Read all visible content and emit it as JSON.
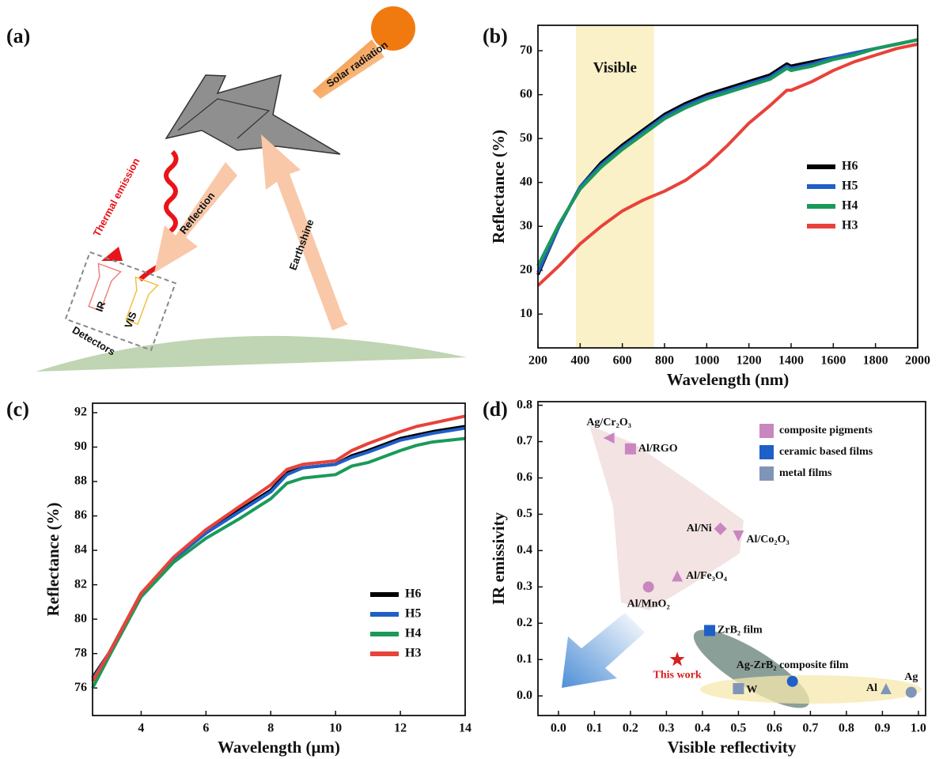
{
  "diagram": {
    "panel": "(a)",
    "labels": {
      "solar": "Solar radiation",
      "thermal": "Thermal emission",
      "reflection": "Reflection",
      "earthshine": "Earthshine",
      "ir": "IR",
      "vis": "VIS",
      "detectors": "Detectors"
    }
  },
  "chart_data": [
    {
      "type": "line",
      "panel": "(b)",
      "x_label": "Wavelength (nm)",
      "y_label": "Reflectance (%)",
      "x": [
        200,
        300,
        400,
        500,
        600,
        700,
        800,
        900,
        1000,
        1100,
        1200,
        1300,
        1380,
        1400,
        1500,
        1600,
        1700,
        1800,
        1900,
        2000
      ],
      "series": [
        {
          "name": "H6",
          "color": "#000000",
          "values": [
            19,
            30,
            39,
            44.5,
            48.5,
            52,
            55.5,
            58,
            60,
            61.5,
            63,
            64.5,
            67,
            66.5,
            67.5,
            68.5,
            69.5,
            70.5,
            71.5,
            72.5
          ]
        },
        {
          "name": "H5",
          "color": "#1f5fc8",
          "values": [
            19.5,
            30,
            39,
            44,
            48,
            51.5,
            55,
            57.5,
            59.5,
            61,
            62.5,
            64,
            66.5,
            66,
            67,
            68.5,
            69.5,
            70.5,
            71.5,
            72.5
          ]
        },
        {
          "name": "H4",
          "color": "#1a9a5a",
          "values": [
            21,
            30.5,
            38.5,
            43.5,
            47.5,
            51,
            54.5,
            57,
            59,
            60.5,
            62,
            63.5,
            66,
            65.5,
            66.5,
            68,
            69,
            70.5,
            71.5,
            72.5
          ]
        },
        {
          "name": "H3",
          "color": "#e8423a",
          "values": [
            16.5,
            21,
            26,
            30,
            33.5,
            36,
            38,
            40.5,
            44,
            48.5,
            53.5,
            57.5,
            61,
            61,
            63,
            65.5,
            67.5,
            69,
            70.5,
            71.5
          ]
        }
      ],
      "band": {
        "label": "Visible",
        "range": [
          380,
          750
        ],
        "color": "#fbf1c9"
      },
      "xlim": [
        200,
        2000
      ],
      "xticks": [
        200,
        400,
        600,
        800,
        1000,
        1200,
        1400,
        1600,
        1800,
        2000
      ],
      "ylim": [
        2.3,
        75.8
      ],
      "yticks": [
        10,
        20,
        30,
        40,
        50,
        60,
        70
      ],
      "legend": "center right"
    },
    {
      "type": "line",
      "panel": "(c)",
      "x_label": "Wavelength (μm)",
      "y_label": "Reflectance (%)",
      "x": [
        2.5,
        3,
        4,
        5,
        6,
        7,
        8,
        8.5,
        9,
        10,
        10.5,
        11,
        12,
        12.5,
        13,
        14
      ],
      "series": [
        {
          "name": "H6",
          "color": "#000000",
          "values": [
            76.6,
            78,
            81.5,
            83.5,
            85,
            86.3,
            87.5,
            88.5,
            88.8,
            89,
            89.5,
            89.8,
            90.5,
            90.7,
            90.9,
            91.2
          ]
        },
        {
          "name": "H5",
          "color": "#1f5fc8",
          "values": [
            76.5,
            78,
            81.5,
            83.5,
            85,
            86.2,
            87.4,
            88.4,
            88.8,
            89,
            89.4,
            89.7,
            90.4,
            90.6,
            90.8,
            91.1
          ]
        },
        {
          "name": "H4",
          "color": "#1a9a5a",
          "values": [
            76,
            77.8,
            81.3,
            83.3,
            84.7,
            85.8,
            87,
            87.9,
            88.2,
            88.4,
            88.9,
            89.1,
            89.8,
            90.1,
            90.3,
            90.5
          ]
        },
        {
          "name": "H3",
          "color": "#e8423a",
          "values": [
            76.4,
            78,
            81.5,
            83.6,
            85.2,
            86.5,
            87.8,
            88.7,
            89,
            89.2,
            89.8,
            90.2,
            90.9,
            91.2,
            91.4,
            91.8
          ]
        }
      ],
      "xlim": [
        2.5,
        14
      ],
      "xticks": [
        4,
        6,
        8,
        10,
        12,
        14
      ],
      "ylim": [
        74.4,
        92.55
      ],
      "yticks": [
        76,
        78,
        80,
        82,
        84,
        86,
        88,
        90,
        92
      ],
      "legend": "lower right"
    },
    {
      "type": "scatter",
      "panel": "(d)",
      "x_label": "Visible reflectivity",
      "y_label": "IR emissivity",
      "series": [
        {
          "name": "composite pigments",
          "color": "#c987bf",
          "x": [
            0.14,
            0.2,
            0.45,
            0.5,
            0.33,
            0.25
          ],
          "y": [
            0.71,
            0.68,
            0.46,
            0.44,
            0.33,
            0.3
          ],
          "labels": [
            "Ag/Cr₂O₃",
            "Al/RGO",
            "Al/Ni",
            "Al/Co₂O₃",
            "Al/Fe₃O₄",
            "Al/MnO₂"
          ],
          "markers": [
            "triangle-left",
            "square",
            "diamond",
            "triangle-down",
            "triangle-up",
            "circle"
          ]
        },
        {
          "name": "ceramic based films",
          "color": "#1f5fc8",
          "x": [
            0.42,
            0.65
          ],
          "y": [
            0.18,
            0.04
          ],
          "labels": [
            "ZrB₂ film",
            "Ag-ZrB₂ composite film"
          ],
          "markers": [
            "square",
            "circle"
          ]
        },
        {
          "name": "metal films",
          "color": "#7f95b8",
          "x": [
            0.5,
            0.91,
            0.98
          ],
          "y": [
            0.02,
            0.02,
            0.01
          ],
          "labels": [
            "W",
            "Al",
            "Ag"
          ],
          "markers": [
            "square",
            "triangle-up",
            "circle"
          ]
        }
      ],
      "highlight": {
        "label": "This work",
        "x": 0.33,
        "y": 0.1,
        "color": "#d62020",
        "marker": "star"
      },
      "xlim": [
        -0.057,
        1.02
      ],
      "xticks": [
        {
          "value": 0,
          "label": "0.0"
        },
        0.1,
        0.2,
        0.3,
        0.4,
        0.5,
        0.6,
        0.7,
        0.8,
        0.9,
        {
          "value": 1,
          "label": "1.0"
        }
      ],
      "ylim": [
        -0.054,
        0.81
      ],
      "yticks": [
        {
          "value": 0,
          "label": "0.0"
        },
        0.1,
        0.2,
        0.3,
        0.4,
        0.5,
        0.6,
        0.7,
        0.8
      ],
      "legend": "upper right"
    }
  ]
}
